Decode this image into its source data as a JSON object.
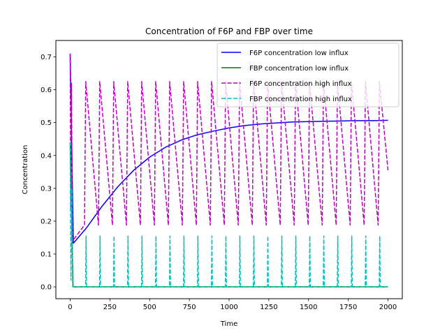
{
  "chart_data": {
    "type": "line",
    "title": "Concentration of F6P and FBP over time",
    "xlabel": "Time",
    "ylabel": "Concentration",
    "xlim": [
      -90,
      2090
    ],
    "ylim": [
      -0.036,
      0.75
    ],
    "xticks": [
      0,
      250,
      500,
      750,
      1000,
      1250,
      1500,
      1750,
      2000
    ],
    "yticks": [
      0.0,
      0.1,
      0.2,
      0.3,
      0.4,
      0.5,
      0.6,
      0.7
    ],
    "grid": false,
    "legend_position": "top-right",
    "colors": {
      "f6p_low": "#0000ff",
      "fbp_low": "#008000",
      "f6p_high": "#bf00bf",
      "fbp_high": "#00bfbf"
    },
    "series": [
      {
        "name": "F6P concentration low influx",
        "color": "#0000ff",
        "style": "solid",
        "points": [
          [
            0,
            0.71
          ],
          [
            20,
            0.133
          ],
          [
            100,
            0.178
          ],
          [
            200,
            0.245
          ],
          [
            300,
            0.305
          ],
          [
            400,
            0.355
          ],
          [
            500,
            0.395
          ],
          [
            600,
            0.425
          ],
          [
            700,
            0.447
          ],
          [
            800,
            0.463
          ],
          [
            900,
            0.474
          ],
          [
            1000,
            0.484
          ],
          [
            1100,
            0.491
          ],
          [
            1200,
            0.496
          ],
          [
            1300,
            0.499
          ],
          [
            1400,
            0.502
          ],
          [
            1500,
            0.503
          ],
          [
            1600,
            0.504
          ],
          [
            1700,
            0.505
          ],
          [
            1800,
            0.506
          ],
          [
            1900,
            0.506
          ],
          [
            2000,
            0.507
          ]
        ]
      },
      {
        "name": "FBP concentration low influx",
        "color": "#008000",
        "style": "solid",
        "points": [
          [
            0,
            0.44
          ],
          [
            10,
            0.2
          ],
          [
            18,
            0.0
          ],
          [
            2000,
            0.0
          ]
        ]
      },
      {
        "name": "F6P concentration high influx",
        "color": "#bf00bf",
        "style": "dashed",
        "period": 88,
        "first_peak_x": 98,
        "peak": 0.625,
        "trough": 0.188,
        "initial_points": [
          [
            0,
            0.71
          ],
          [
            4,
            0.24
          ],
          [
            8,
            0.62
          ],
          [
            15,
            0.14
          ]
        ],
        "end": [
          2000,
          0.355
        ]
      },
      {
        "name": "FBP concentration high influx",
        "color": "#00bfbf",
        "style": "dashed",
        "period": 88,
        "first_spike_x": 100,
        "spike_peak": 0.155,
        "baseline": 0.0,
        "initial_points": [
          [
            0,
            0.44
          ],
          [
            5,
            0.02
          ],
          [
            10,
            0.3
          ],
          [
            16,
            0.0
          ]
        ]
      }
    ]
  }
}
